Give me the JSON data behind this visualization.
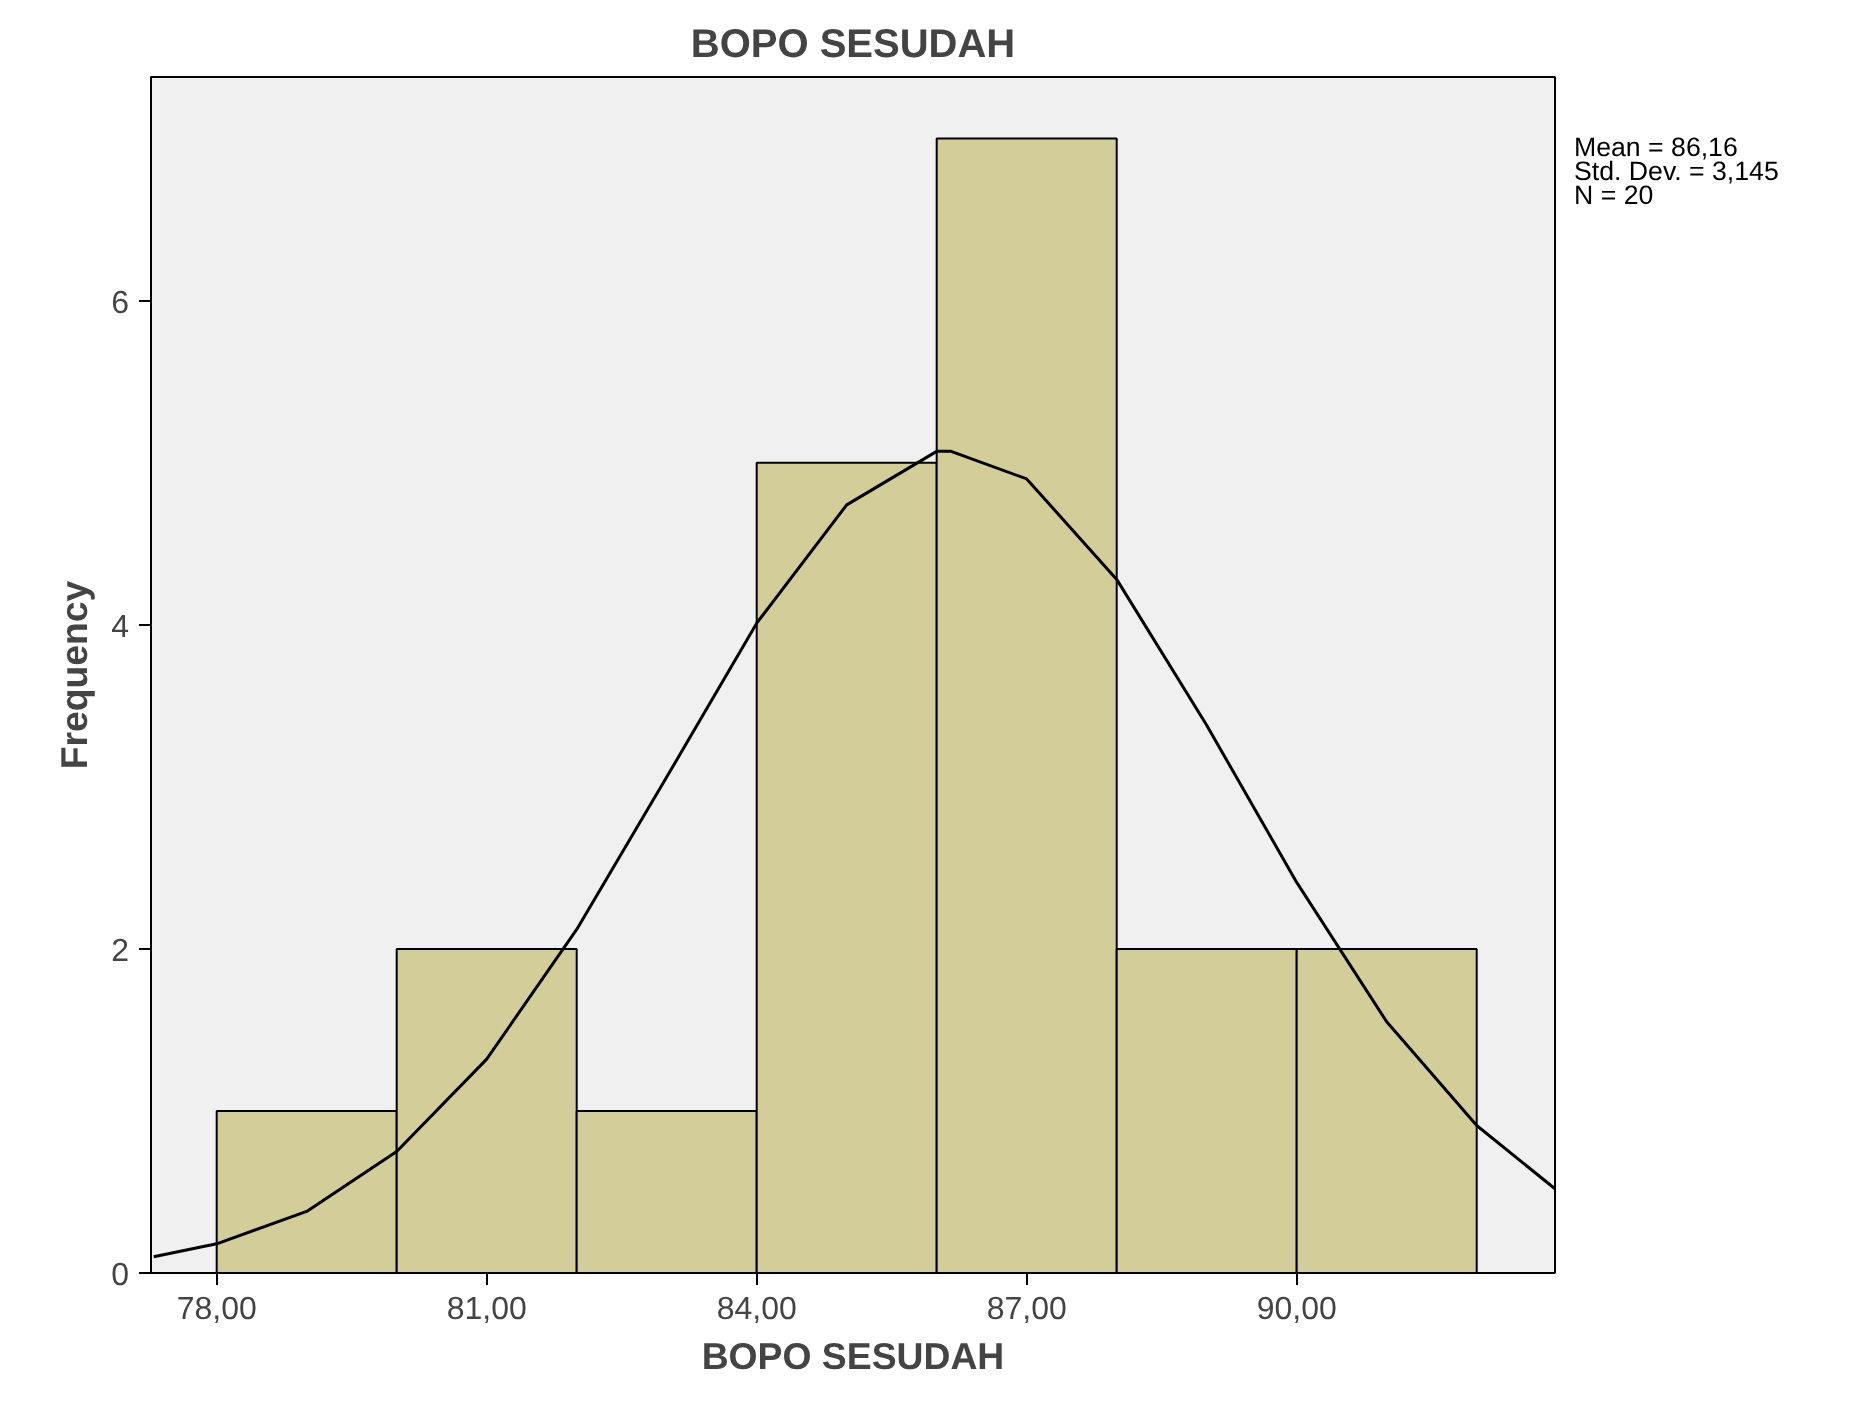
{
  "chart_data": {
    "type": "histogram",
    "title": "BOPO SESUDAH",
    "xlabel": "BOPO SESUDAH",
    "ylabel": "Frequency",
    "bins": [
      78,
      80,
      82,
      84,
      86,
      88,
      90,
      92
    ],
    "values": [
      1,
      2,
      1,
      5,
      7,
      2,
      2
    ],
    "color": "#d3ce99",
    "series": [
      {
        "type": "line",
        "color": "#000000",
        "x": [
          77.3,
          78,
          79,
          80,
          81,
          82,
          83,
          84,
          85,
          86,
          86.16,
          87,
          88,
          89,
          90,
          91,
          92,
          92.87
        ],
        "values": [
          0.1,
          0.18,
          0.38,
          0.75,
          1.32,
          2.12,
          3.06,
          4.01,
          4.74,
          5.07,
          5.07,
          4.9,
          4.28,
          3.38,
          2.41,
          1.55,
          0.91,
          0.52
        ]
      }
    ],
    "xlim": [
      77.27,
      92.87
    ],
    "ylim": [
      0,
      7.38
    ],
    "xticks": [
      {
        "value": 78,
        "label": "78,00"
      },
      {
        "value": 81,
        "label": "81,00"
      },
      {
        "value": 84,
        "label": "84,00"
      },
      {
        "value": 87,
        "label": "87,00"
      },
      {
        "value": 90,
        "label": "90,00"
      }
    ],
    "yticks": [
      0,
      2,
      4,
      6
    ],
    "grid": false,
    "annotations": [
      "Mean = 86,16",
      "Std. Dev. = 3,145",
      "N = 20"
    ]
  }
}
